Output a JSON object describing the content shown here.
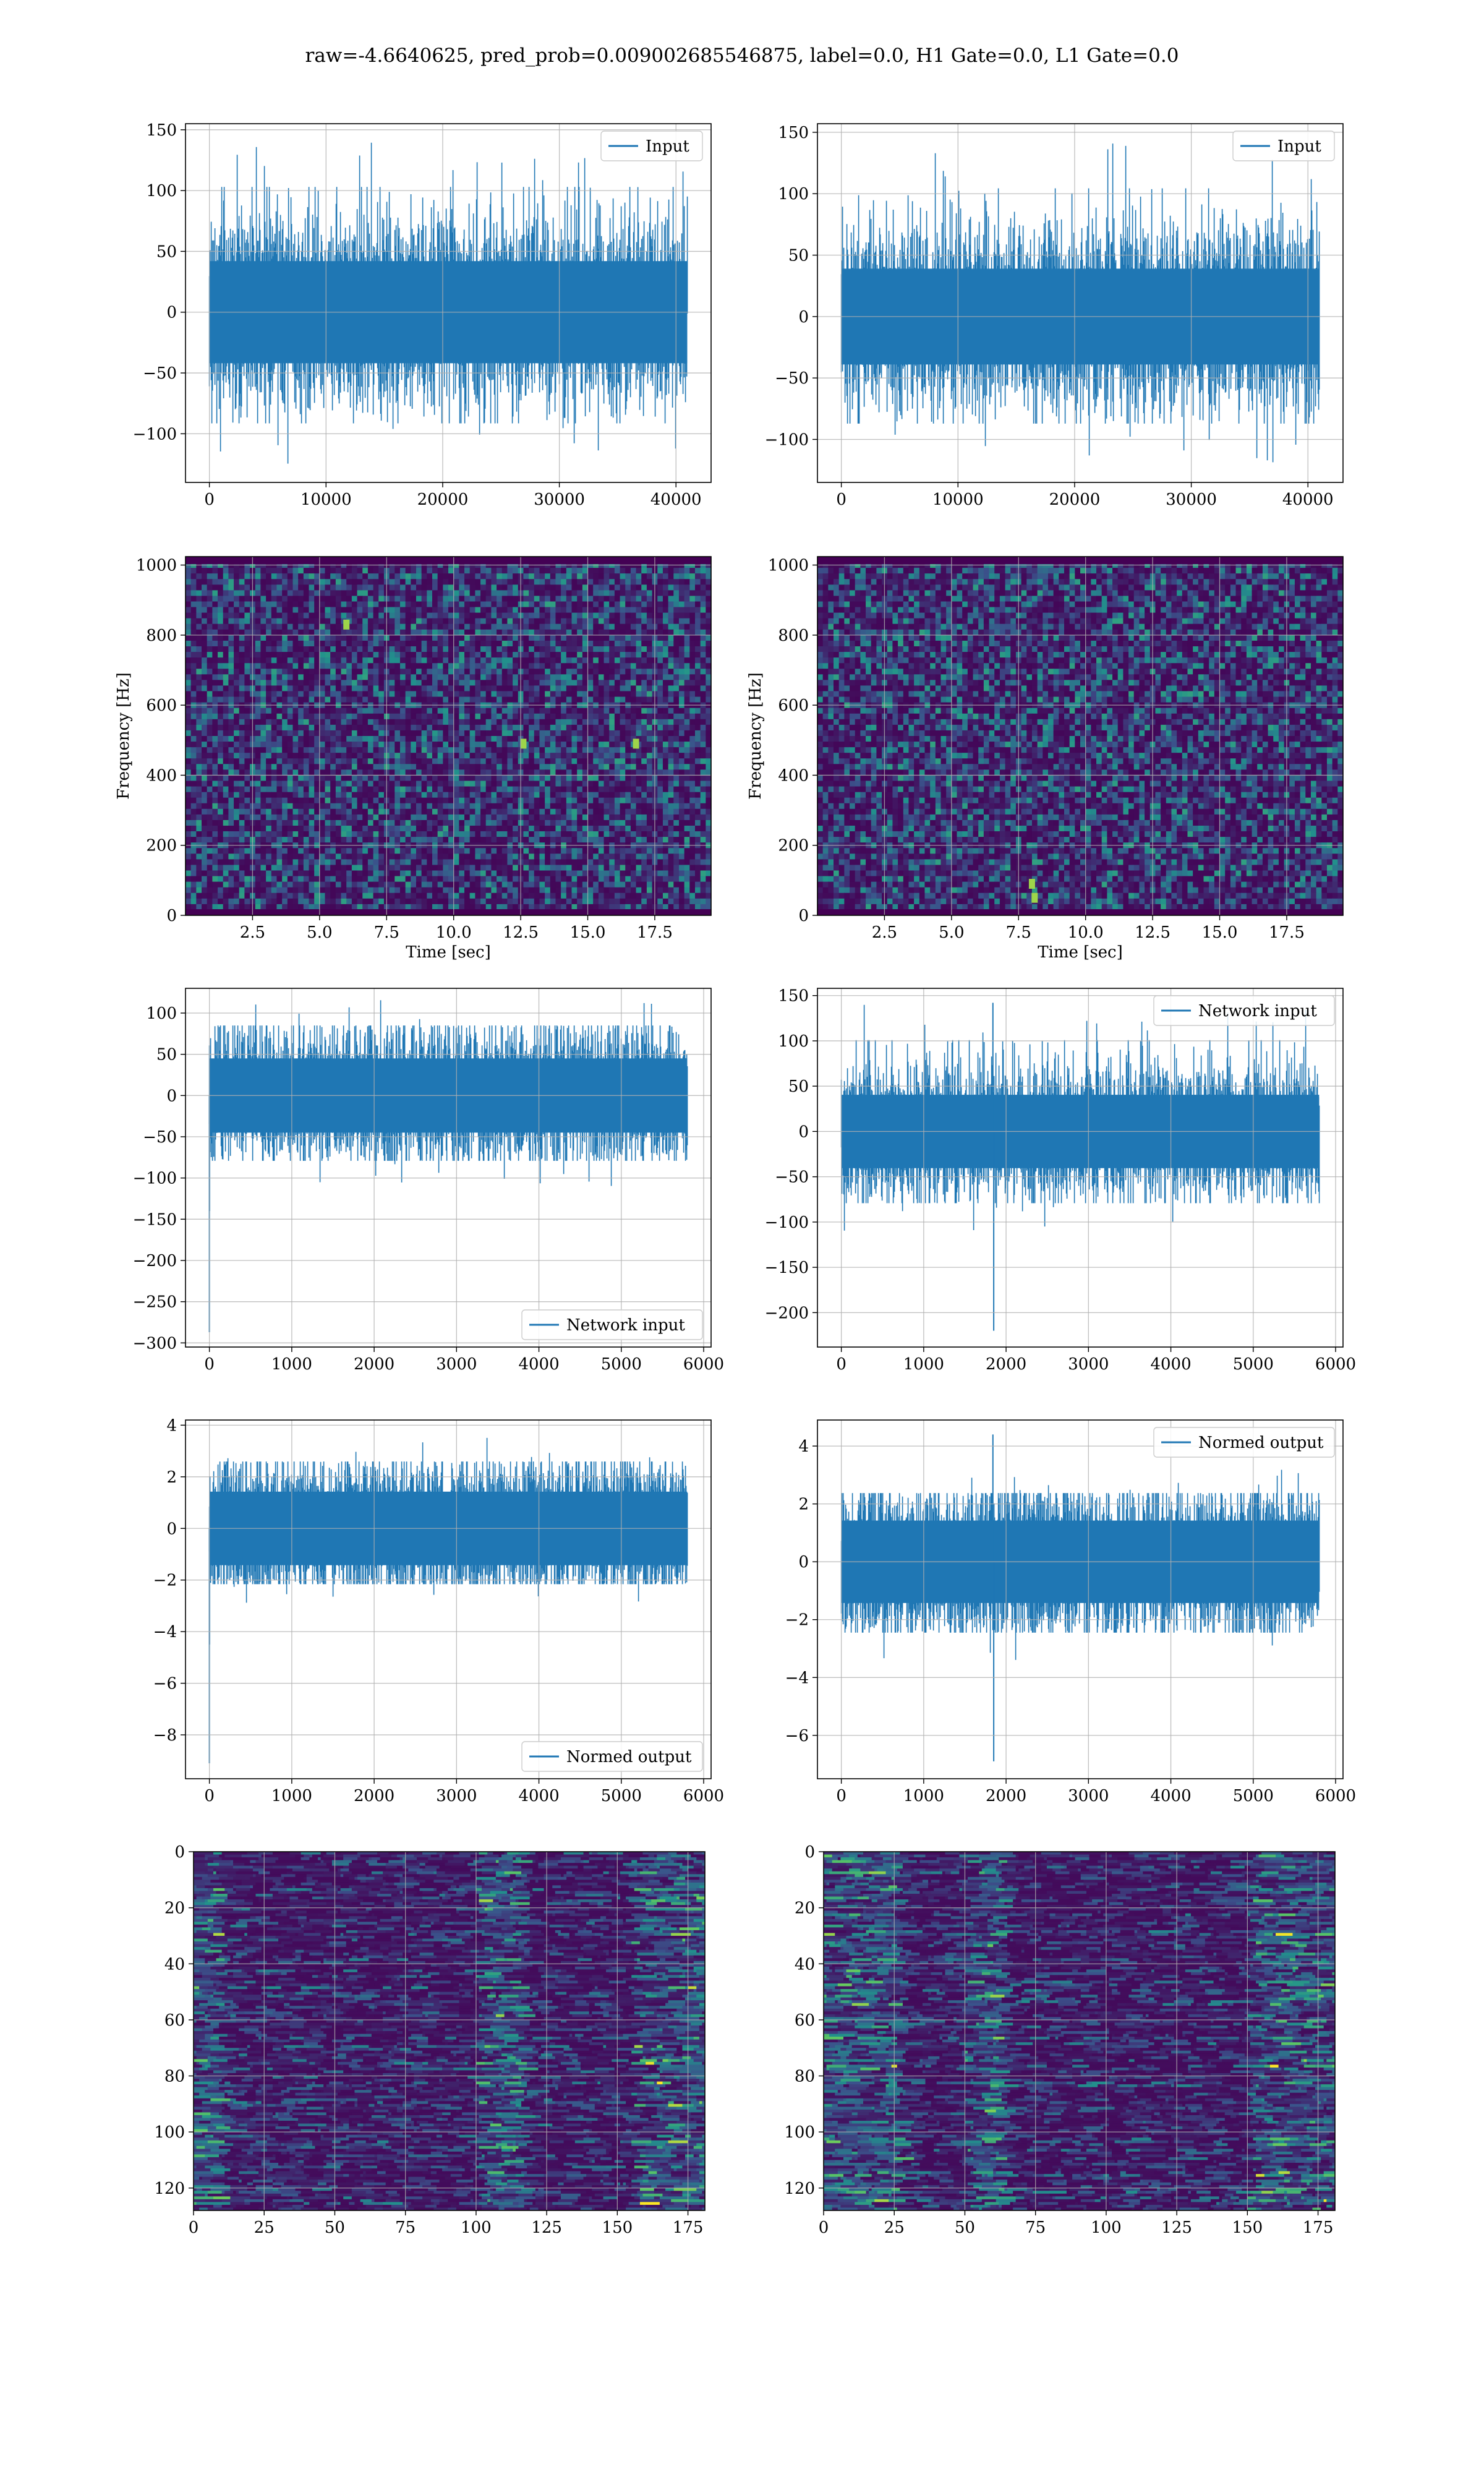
{
  "figure": {
    "title": "raw=-4.6640625, pred_prob=0.009002685546875, label=0.0, H1 Gate=0.0, L1 Gate=0.0"
  },
  "colors": {
    "series": "#1f77b4",
    "grid": "#b0b0b0",
    "viridis_dark": "#440154",
    "viridis_blue": "#31688e",
    "viridis_green": "#35b779",
    "viridis_yellow": "#fde725"
  },
  "chart_data": [
    {
      "id": "p00",
      "type": "line",
      "style": "noise",
      "series": [
        {
          "name": "Input",
          "n": 40960,
          "mean": 0,
          "std": 28,
          "min": -127,
          "max": 143
        }
      ],
      "xlim": [
        -2048,
        43008
      ],
      "ylim": [
        -140,
        155
      ],
      "xticks": [
        0,
        10000,
        20000,
        30000,
        40000
      ],
      "yticks": [
        -100,
        -50,
        0,
        50,
        100,
        150
      ],
      "xticklabels": [
        "0",
        "10000",
        "20000",
        "30000",
        "40000"
      ],
      "yticklabels": [
        "−100",
        "−50",
        "0",
        "50",
        "100",
        "150"
      ],
      "grid": true,
      "legend": "upper-right"
    },
    {
      "id": "p01",
      "type": "line",
      "style": "noise",
      "series": [
        {
          "name": "Input",
          "n": 40960,
          "mean": 0,
          "std": 26,
          "min": -121,
          "max": 145
        }
      ],
      "xlim": [
        -2048,
        43008
      ],
      "ylim": [
        -135,
        157
      ],
      "xticks": [
        0,
        10000,
        20000,
        30000,
        40000
      ],
      "yticks": [
        -100,
        -50,
        0,
        50,
        100,
        150
      ],
      "xticklabels": [
        "0",
        "10000",
        "20000",
        "30000",
        "40000"
      ],
      "yticklabels": [
        "−100",
        "−50",
        "0",
        "50",
        "100",
        "150"
      ],
      "grid": true,
      "legend": "upper-right"
    },
    {
      "id": "p10",
      "type": "heatmap",
      "style": "spectrogram",
      "xlim": [
        0,
        19.6
      ],
      "ylim": [
        0,
        1024
      ],
      "xticks": [
        2.5,
        5.0,
        7.5,
        10.0,
        12.5,
        15.0,
        17.5
      ],
      "yticks": [
        0,
        200,
        400,
        600,
        800,
        1000
      ],
      "xticklabels": [
        "2.5",
        "5.0",
        "7.5",
        "10.0",
        "12.5",
        "15.0",
        "17.5"
      ],
      "yticklabels": [
        "0",
        "200",
        "400",
        "600",
        "800",
        "1000"
      ],
      "xlabel": "Time [sec]",
      "ylabel": "Frequency [Hz]",
      "grid": true,
      "hotspots": [
        [
          12.6,
          490
        ],
        [
          16.8,
          490
        ],
        [
          6.0,
          830
        ]
      ]
    },
    {
      "id": "p11",
      "type": "heatmap",
      "style": "spectrogram",
      "xlim": [
        0,
        19.6
      ],
      "ylim": [
        0,
        1024
      ],
      "xticks": [
        2.5,
        5.0,
        7.5,
        10.0,
        12.5,
        15.0,
        17.5
      ],
      "yticks": [
        0,
        200,
        400,
        600,
        800,
        1000
      ],
      "xticklabels": [
        "2.5",
        "5.0",
        "7.5",
        "10.0",
        "12.5",
        "15.0",
        "17.5"
      ],
      "yticklabels": [
        "0",
        "200",
        "400",
        "600",
        "800",
        "1000"
      ],
      "xlabel": "Time [sec]",
      "ylabel": "Frequency [Hz]",
      "grid": true,
      "hotspots": [
        [
          8.1,
          50
        ],
        [
          8.0,
          90
        ]
      ]
    },
    {
      "id": "p20",
      "type": "line",
      "style": "noise",
      "series": [
        {
          "name": "Network input",
          "n": 5800,
          "mean": 0,
          "std": 30,
          "min": -110,
          "max": 118
        }
      ],
      "spikes": [
        [
          0,
          -287
        ],
        [
          2,
          -140
        ]
      ],
      "xlim": [
        -290,
        6090
      ],
      "ylim": [
        -305,
        130
      ],
      "xticks": [
        0,
        1000,
        2000,
        3000,
        4000,
        5000,
        6000
      ],
      "yticks": [
        -300,
        -250,
        -200,
        -150,
        -100,
        -50,
        0,
        50,
        100
      ],
      "xticklabels": [
        "0",
        "1000",
        "2000",
        "3000",
        "4000",
        "5000",
        "6000"
      ],
      "yticklabels": [
        "−300",
        "−250",
        "−200",
        "−150",
        "−100",
        "−50",
        "0",
        "50",
        "100"
      ],
      "grid": true,
      "legend": "lower-right"
    },
    {
      "id": "p21",
      "type": "line",
      "style": "noise",
      "series": [
        {
          "name": "Network input",
          "n": 5800,
          "mean": 0,
          "std": 27,
          "min": -110,
          "max": 140
        }
      ],
      "spikes": [
        [
          1850,
          -220
        ],
        [
          1840,
          142
        ]
      ],
      "xlim": [
        -290,
        6090
      ],
      "ylim": [
        -238,
        158
      ],
      "xticks": [
        0,
        1000,
        2000,
        3000,
        4000,
        5000,
        6000
      ],
      "yticks": [
        -200,
        -150,
        -100,
        -50,
        0,
        50,
        100,
        150
      ],
      "xticklabels": [
        "0",
        "1000",
        "2000",
        "3000",
        "4000",
        "5000",
        "6000"
      ],
      "yticklabels": [
        "−200",
        "−150",
        "−100",
        "−50",
        "0",
        "50",
        "100",
        "150"
      ],
      "grid": true,
      "legend": "upper-right"
    },
    {
      "id": "p30",
      "type": "line",
      "style": "noise",
      "series": [
        {
          "name": "Normed output",
          "n": 5800,
          "mean": 0,
          "std": 0.95,
          "min": -3.0,
          "max": 3.6
        }
      ],
      "spikes": [
        [
          0,
          -9.1
        ],
        [
          2,
          -4.5
        ]
      ],
      "xlim": [
        -290,
        6090
      ],
      "ylim": [
        -9.7,
        4.2
      ],
      "xticks": [
        0,
        1000,
        2000,
        3000,
        4000,
        5000,
        6000
      ],
      "yticks": [
        -8,
        -6,
        -4,
        -2,
        0,
        2,
        4
      ],
      "xticklabels": [
        "0",
        "1000",
        "2000",
        "3000",
        "4000",
        "5000",
        "6000"
      ],
      "yticklabels": [
        "−8",
        "−6",
        "−4",
        "−2",
        "0",
        "2",
        "4"
      ],
      "grid": true,
      "legend": "lower-right"
    },
    {
      "id": "p31",
      "type": "line",
      "style": "noise",
      "series": [
        {
          "name": "Normed output",
          "n": 5800,
          "mean": 0,
          "std": 0.95,
          "min": -3.4,
          "max": 3.3
        }
      ],
      "spikes": [
        [
          1850,
          -6.9
        ],
        [
          1840,
          4.4
        ]
      ],
      "xlim": [
        -290,
        6090
      ],
      "ylim": [
        -7.5,
        4.9
      ],
      "xticks": [
        0,
        1000,
        2000,
        3000,
        4000,
        5000,
        6000
      ],
      "yticks": [
        -6,
        -4,
        -2,
        0,
        2,
        4
      ],
      "xticklabels": [
        "0",
        "1000",
        "2000",
        "3000",
        "4000",
        "5000",
        "6000"
      ],
      "yticklabels": [
        "−6",
        "−4",
        "−2",
        "0",
        "2",
        "4"
      ],
      "grid": true,
      "legend": "upper-right"
    },
    {
      "id": "p40",
      "type": "heatmap",
      "style": "feature-map",
      "xlim": [
        0,
        181
      ],
      "ylim": [
        128,
        0
      ],
      "xticks": [
        0,
        25,
        50,
        75,
        100,
        125,
        150,
        175
      ],
      "yticks": [
        0,
        20,
        40,
        60,
        80,
        100,
        120
      ],
      "xticklabels": [
        "0",
        "25",
        "50",
        "75",
        "100",
        "125",
        "150",
        "175"
      ],
      "yticklabels": [
        "0",
        "20",
        "40",
        "60",
        "80",
        "100",
        "120"
      ],
      "grid": true,
      "bright_regions": [
        [
          0,
          8
        ],
        [
          100,
          115
        ],
        [
          155,
          181
        ]
      ]
    },
    {
      "id": "p41",
      "type": "heatmap",
      "style": "feature-map",
      "xlim": [
        0,
        181
      ],
      "ylim": [
        128,
        0
      ],
      "xticks": [
        0,
        25,
        50,
        75,
        100,
        125,
        150,
        175
      ],
      "yticks": [
        0,
        20,
        40,
        60,
        80,
        100,
        120
      ],
      "xticklabels": [
        "0",
        "25",
        "50",
        "75",
        "100",
        "125",
        "150",
        "175"
      ],
      "yticklabels": [
        "0",
        "20",
        "40",
        "60",
        "80",
        "100",
        "120"
      ],
      "grid": true,
      "bright_regions": [
        [
          0,
          25
        ],
        [
          50,
          62
        ],
        [
          150,
          181
        ]
      ]
    }
  ]
}
